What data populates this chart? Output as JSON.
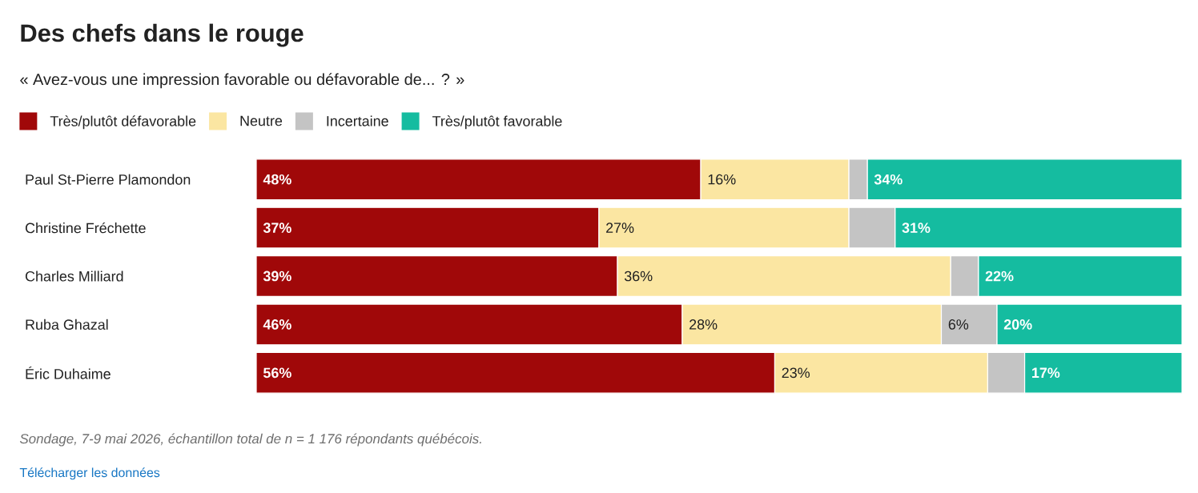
{
  "chart_data": {
    "type": "bar",
    "orientation": "horizontal",
    "stacked": true,
    "title": "Des chefs dans le rouge",
    "subtitle": "« Avez-vous une impression favorable ou défavorable de... ? »",
    "categories": [
      "Paul St-Pierre Plamondon",
      "Christine Fréchette",
      "Charles Milliard",
      "Ruba Ghazal",
      "Éric Duhaime"
    ],
    "series": [
      {
        "name": "Très/plutôt défavorable",
        "color": "#a00809",
        "values": [
          48,
          37,
          39,
          46,
          56
        ],
        "value_labels": [
          "48%",
          "37%",
          "39%",
          "46%",
          "56%"
        ]
      },
      {
        "name": "Neutre",
        "color": "#fbe6a2",
        "values": [
          16,
          27,
          36,
          28,
          23
        ],
        "value_labels": [
          "16%",
          "27%",
          "36%",
          "28%",
          "23%"
        ]
      },
      {
        "name": "Incertaine",
        "color": "#c4c4c4",
        "values": [
          2,
          5,
          3,
          6,
          4
        ],
        "value_labels": [
          null,
          null,
          null,
          "6%",
          null
        ]
      },
      {
        "name": "Très/plutôt favorable",
        "color": "#15bca0",
        "values": [
          34,
          31,
          22,
          20,
          17
        ],
        "value_labels": [
          "34%",
          "31%",
          "22%",
          "20%",
          "17%"
        ]
      }
    ],
    "legend": "top left",
    "annotations": [
      "Sondage, 7-9 mai 2026, échantillon total de n = 1 176 répondants québécois.",
      "Télécharger les données"
    ]
  }
}
